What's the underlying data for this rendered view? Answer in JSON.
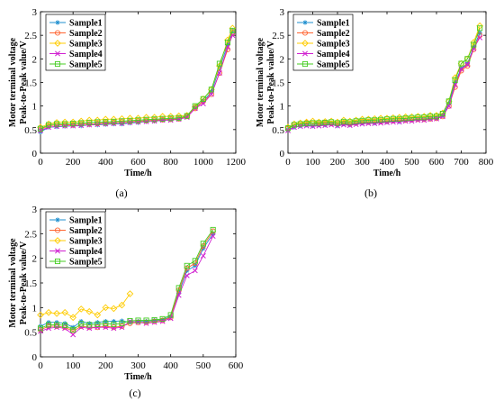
{
  "panels": [
    "(a)",
    "(b)",
    "(c)"
  ],
  "chart_data": [
    {
      "type": "line",
      "panel_label": "(a)",
      "xlabel": "Time/h",
      "ylabel": "Motor terminal voltage\nPeak-to-Peak value/V",
      "xlim": [
        0,
        1200
      ],
      "ylim": [
        0,
        3
      ],
      "xticks": [
        "0",
        "200",
        "400",
        "600",
        "800",
        "1000",
        "1200"
      ],
      "yticks": [
        "0",
        "0.5",
        "1",
        "1.5",
        "2",
        "2.5",
        "3"
      ],
      "legend_position": "top-left",
      "series": [
        {
          "name": "Sample1",
          "color": "#1f8fcf",
          "marker": "star",
          "x": [
            0,
            50,
            100,
            150,
            200,
            250,
            300,
            350,
            400,
            450,
            500,
            550,
            600,
            650,
            700,
            750,
            800,
            850,
            900,
            950,
            1000,
            1050,
            1100,
            1150,
            1180
          ],
          "y": [
            0.45,
            0.55,
            0.56,
            0.57,
            0.58,
            0.58,
            0.6,
            0.6,
            0.61,
            0.62,
            0.62,
            0.64,
            0.65,
            0.67,
            0.68,
            0.7,
            0.71,
            0.73,
            0.78,
            0.98,
            1.1,
            1.3,
            1.8,
            2.3,
            2.6
          ]
        },
        {
          "name": "Sample2",
          "color": "#ff6633",
          "marker": "circle",
          "x": [
            0,
            50,
            100,
            150,
            200,
            250,
            300,
            350,
            400,
            450,
            500,
            550,
            600,
            650,
            700,
            750,
            800,
            850,
            900,
            950,
            1000,
            1050,
            1100,
            1150,
            1180
          ],
          "y": [
            0.5,
            0.58,
            0.6,
            0.6,
            0.6,
            0.62,
            0.62,
            0.63,
            0.64,
            0.65,
            0.66,
            0.67,
            0.68,
            0.69,
            0.7,
            0.71,
            0.72,
            0.73,
            0.78,
            0.95,
            1.1,
            1.25,
            1.7,
            2.2,
            2.55
          ]
        },
        {
          "name": "Sample3",
          "color": "#ffcc00",
          "marker": "diamond",
          "x": [
            0,
            50,
            100,
            150,
            200,
            250,
            300,
            350,
            400,
            450,
            500,
            550,
            600,
            650,
            700,
            750,
            800,
            850,
            900,
            950,
            1000,
            1050,
            1100,
            1150,
            1180
          ],
          "y": [
            0.55,
            0.62,
            0.65,
            0.66,
            0.66,
            0.68,
            0.7,
            0.7,
            0.72,
            0.72,
            0.73,
            0.74,
            0.74,
            0.76,
            0.76,
            0.78,
            0.78,
            0.79,
            0.8,
            0.98,
            1.15,
            1.35,
            1.85,
            2.4,
            2.65
          ]
        },
        {
          "name": "Sample4",
          "color": "#d020d0",
          "marker": "x",
          "x": [
            0,
            50,
            100,
            150,
            200,
            250,
            300,
            350,
            400,
            450,
            500,
            550,
            600,
            650,
            700,
            750,
            800,
            850,
            900,
            950,
            1000,
            1050,
            1100,
            1150,
            1180
          ],
          "y": [
            0.48,
            0.55,
            0.57,
            0.58,
            0.58,
            0.59,
            0.6,
            0.61,
            0.62,
            0.63,
            0.63,
            0.65,
            0.66,
            0.67,
            0.68,
            0.7,
            0.7,
            0.72,
            0.76,
            0.95,
            1.05,
            1.25,
            1.7,
            2.25,
            2.5
          ]
        },
        {
          "name": "Sample5",
          "color": "#44cc22",
          "marker": "square",
          "x": [
            0,
            50,
            100,
            150,
            200,
            250,
            300,
            350,
            400,
            450,
            500,
            550,
            600,
            650,
            700,
            750,
            800,
            850,
            900,
            950,
            1000,
            1050,
            1100,
            1150,
            1180
          ],
          "y": [
            0.52,
            0.6,
            0.62,
            0.62,
            0.63,
            0.64,
            0.65,
            0.66,
            0.66,
            0.67,
            0.68,
            0.69,
            0.7,
            0.71,
            0.72,
            0.73,
            0.74,
            0.75,
            0.79,
            1.0,
            1.15,
            1.35,
            1.9,
            2.35,
            2.6
          ]
        }
      ]
    },
    {
      "type": "line",
      "panel_label": "(b)",
      "xlabel": "Time/h",
      "ylabel": "Motor terminal voltage\nPeak-to-Peak value/V",
      "xlim": [
        0,
        800
      ],
      "ylim": [
        0,
        3
      ],
      "xticks": [
        "0",
        "100",
        "200",
        "300",
        "400",
        "500",
        "600",
        "700",
        "800"
      ],
      "yticks": [
        "0",
        "0.5",
        "1",
        "1.5",
        "2",
        "2.5",
        "3"
      ],
      "legend_position": "top-left",
      "series": [
        {
          "name": "Sample1",
          "color": "#1f8fcf",
          "marker": "star",
          "x": [
            0,
            25,
            50,
            75,
            100,
            125,
            150,
            175,
            200,
            225,
            250,
            275,
            300,
            325,
            350,
            375,
            400,
            425,
            450,
            475,
            500,
            525,
            550,
            575,
            600,
            625,
            650,
            675,
            700,
            725,
            750,
            775
          ],
          "y": [
            0.5,
            0.55,
            0.58,
            0.6,
            0.58,
            0.6,
            0.6,
            0.62,
            0.58,
            0.62,
            0.6,
            0.63,
            0.64,
            0.65,
            0.64,
            0.66,
            0.66,
            0.68,
            0.67,
            0.7,
            0.7,
            0.72,
            0.72,
            0.74,
            0.75,
            0.8,
            1.05,
            1.5,
            1.8,
            1.9,
            2.25,
            2.55
          ]
        },
        {
          "name": "Sample2",
          "color": "#ff6633",
          "marker": "circle",
          "x": [
            0,
            25,
            50,
            75,
            100,
            125,
            150,
            175,
            200,
            225,
            250,
            275,
            300,
            325,
            350,
            375,
            400,
            425,
            450,
            475,
            500,
            525,
            550,
            575,
            600,
            625,
            650,
            675,
            700,
            725,
            750,
            775
          ],
          "y": [
            0.52,
            0.6,
            0.62,
            0.65,
            0.63,
            0.62,
            0.64,
            0.63,
            0.62,
            0.64,
            0.62,
            0.64,
            0.66,
            0.66,
            0.67,
            0.67,
            0.68,
            0.69,
            0.7,
            0.7,
            0.71,
            0.72,
            0.72,
            0.73,
            0.74,
            0.78,
            1.0,
            1.4,
            1.75,
            1.85,
            2.2,
            2.5
          ]
        },
        {
          "name": "Sample3",
          "color": "#ffcc00",
          "marker": "diamond",
          "x": [
            0,
            25,
            50,
            75,
            100,
            125,
            150,
            175,
            200,
            225,
            250,
            275,
            300,
            325,
            350,
            375,
            400,
            425,
            450,
            475,
            500,
            525,
            550,
            575,
            600,
            625,
            650,
            675,
            700,
            725,
            750,
            775
          ],
          "y": [
            0.55,
            0.62,
            0.64,
            0.66,
            0.68,
            0.66,
            0.67,
            0.68,
            0.66,
            0.7,
            0.68,
            0.7,
            0.72,
            0.72,
            0.73,
            0.74,
            0.74,
            0.75,
            0.76,
            0.77,
            0.77,
            0.78,
            0.78,
            0.8,
            0.8,
            0.85,
            1.1,
            1.6,
            1.9,
            2.0,
            2.35,
            2.7
          ]
        },
        {
          "name": "Sample4",
          "color": "#d020d0",
          "marker": "x",
          "x": [
            0,
            25,
            50,
            75,
            100,
            125,
            150,
            175,
            200,
            225,
            250,
            275,
            300,
            325,
            350,
            375,
            400,
            425,
            450,
            475,
            500,
            525,
            550,
            575,
            600,
            625,
            650,
            675,
            700,
            725,
            750,
            775
          ],
          "y": [
            0.48,
            0.55,
            0.57,
            0.58,
            0.57,
            0.58,
            0.59,
            0.6,
            0.58,
            0.6,
            0.59,
            0.61,
            0.62,
            0.63,
            0.63,
            0.64,
            0.65,
            0.66,
            0.66,
            0.68,
            0.68,
            0.7,
            0.7,
            0.72,
            0.73,
            0.78,
            1.0,
            1.45,
            1.78,
            1.88,
            2.22,
            2.45
          ]
        },
        {
          "name": "Sample5",
          "color": "#44cc22",
          "marker": "square",
          "x": [
            0,
            25,
            50,
            75,
            100,
            125,
            150,
            175,
            200,
            225,
            250,
            275,
            300,
            325,
            350,
            375,
            400,
            425,
            450,
            475,
            500,
            525,
            550,
            575,
            600,
            625,
            650,
            675,
            700,
            725,
            750,
            775
          ],
          "y": [
            0.53,
            0.6,
            0.62,
            0.63,
            0.64,
            0.64,
            0.65,
            0.66,
            0.64,
            0.67,
            0.66,
            0.68,
            0.69,
            0.7,
            0.7,
            0.71,
            0.72,
            0.73,
            0.73,
            0.74,
            0.75,
            0.76,
            0.76,
            0.78,
            0.78,
            0.84,
            1.1,
            1.55,
            1.9,
            2.0,
            2.3,
            2.65
          ]
        }
      ]
    },
    {
      "type": "line",
      "panel_label": "(c)",
      "xlabel": "Time/h",
      "ylabel": "Motor terminal voltage\nPeak-to-Peak value/V",
      "xlim": [
        0,
        600
      ],
      "ylim": [
        0,
        3
      ],
      "xticks": [
        "0",
        "100",
        "200",
        "300",
        "400",
        "500",
        "600"
      ],
      "yticks": [
        "0",
        "0.5",
        "1",
        "1.5",
        "2",
        "2.5",
        "3"
      ],
      "legend_position": "top-left",
      "series": [
        {
          "name": "Sample1",
          "color": "#1f8fcf",
          "marker": "star",
          "x": [
            0,
            25,
            50,
            75,
            100,
            125,
            150,
            175,
            200,
            225,
            250,
            275,
            300,
            325,
            350,
            375,
            400,
            425,
            450,
            475,
            500,
            530
          ],
          "y": [
            0.62,
            0.7,
            0.7,
            0.68,
            0.6,
            0.72,
            0.68,
            0.7,
            0.72,
            0.72,
            0.73,
            0.7,
            0.72,
            0.72,
            0.74,
            0.75,
            0.82,
            1.3,
            1.75,
            1.85,
            2.2,
            2.5
          ]
        },
        {
          "name": "Sample2",
          "color": "#ff6633",
          "marker": "circle",
          "x": [
            0,
            25,
            50,
            75,
            100,
            125,
            150,
            175,
            200,
            225,
            250,
            275,
            300,
            325,
            350,
            375,
            400,
            425,
            450,
            475,
            500,
            530
          ],
          "y": [
            0.55,
            0.62,
            0.62,
            0.6,
            0.52,
            0.62,
            0.6,
            0.6,
            0.62,
            0.6,
            0.62,
            0.68,
            0.7,
            0.7,
            0.72,
            0.74,
            0.8,
            1.35,
            1.8,
            1.9,
            2.25,
            2.55
          ]
        },
        {
          "name": "Sample3",
          "color": "#ffcc00",
          "marker": "diamond",
          "x": [
            0,
            25,
            50,
            75,
            100,
            125,
            150,
            175,
            200,
            225,
            250,
            275
          ],
          "y": [
            0.85,
            0.9,
            0.88,
            0.9,
            0.8,
            0.97,
            0.92,
            0.85,
            1.0,
            0.98,
            1.05,
            1.28
          ]
        },
        {
          "name": "Sample4",
          "color": "#d020d0",
          "marker": "x",
          "x": [
            0,
            25,
            50,
            75,
            100,
            125,
            150,
            175,
            200,
            225,
            250,
            275,
            300,
            325,
            350,
            375,
            400,
            425,
            450,
            475,
            500,
            530
          ],
          "y": [
            0.52,
            0.58,
            0.6,
            0.58,
            0.45,
            0.6,
            0.58,
            0.6,
            0.6,
            0.58,
            0.6,
            0.72,
            0.7,
            0.68,
            0.7,
            0.72,
            0.78,
            1.25,
            1.65,
            1.75,
            2.05,
            2.45
          ]
        },
        {
          "name": "Sample5",
          "color": "#44cc22",
          "marker": "square",
          "x": [
            0,
            25,
            50,
            75,
            100,
            125,
            150,
            175,
            200,
            225,
            250,
            275,
            300,
            325,
            350,
            375,
            400,
            425,
            450,
            475,
            500,
            530
          ],
          "y": [
            0.58,
            0.65,
            0.65,
            0.64,
            0.55,
            0.67,
            0.65,
            0.66,
            0.68,
            0.66,
            0.68,
            0.73,
            0.74,
            0.74,
            0.75,
            0.77,
            0.85,
            1.4,
            1.85,
            1.95,
            2.3,
            2.58
          ]
        }
      ]
    }
  ]
}
